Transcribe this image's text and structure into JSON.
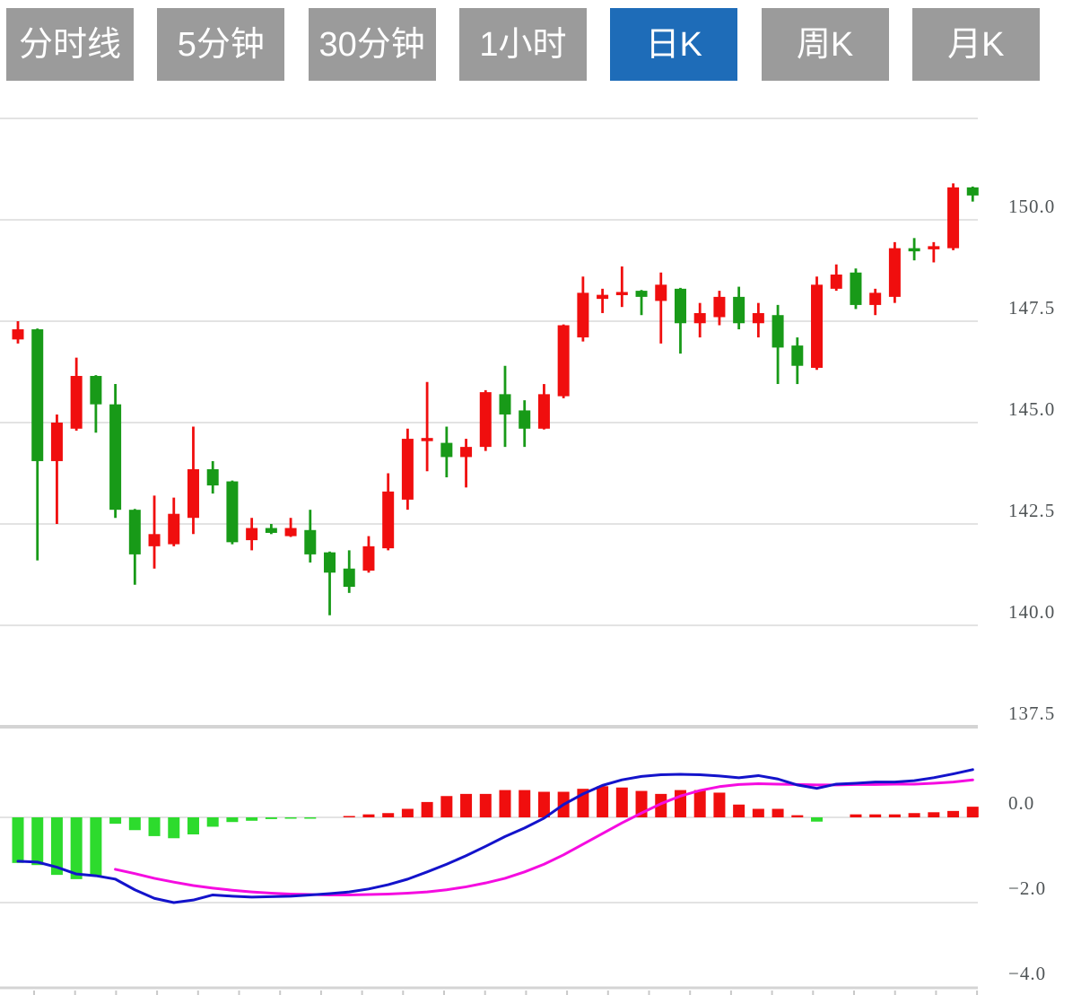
{
  "tabs": {
    "items": [
      {
        "name": "tab-minute-line",
        "label": "分时线",
        "active": false
      },
      {
        "name": "tab-5min",
        "label": "5分钟",
        "active": false
      },
      {
        "name": "tab-30min",
        "label": "30分钟",
        "active": false
      },
      {
        "name": "tab-1hour",
        "label": "1小时",
        "active": false
      },
      {
        "name": "tab-daily-k",
        "label": "日K",
        "active": true
      },
      {
        "name": "tab-weekly-k",
        "label": "周K",
        "active": false
      },
      {
        "name": "tab-monthly-k",
        "label": "月K",
        "active": false
      }
    ]
  },
  "colors": {
    "tab_bg": "#9b9b9b",
    "tab_active_bg": "#1e6cb8",
    "tab_text": "#ffffff",
    "candle_up": "#f00e0e",
    "candle_down": "#189a18",
    "hist_up": "#f00e0e",
    "hist_down": "#2ddb2d",
    "dif_line": "#1313cb",
    "dea_line": "#f50ce0",
    "grid": "#e3e3e3",
    "pane_border": "#d4d4d4",
    "axis_label": "#4f5456"
  },
  "chart_data": {
    "type": "candlestick",
    "title": "",
    "legend_position": "none",
    "grid": true,
    "price_pane": {
      "ylim": [
        137.5,
        152.5
      ],
      "unlabeled_top_grid_value": 152.5,
      "y_ticks": [
        {
          "label": "150.0",
          "value": 150.0
        },
        {
          "label": "147.5",
          "value": 147.5
        },
        {
          "label": "145.0",
          "value": 145.0
        },
        {
          "label": "142.5",
          "value": 142.5
        },
        {
          "label": "140.0",
          "value": 140.0
        },
        {
          "label": "137.5",
          "value": 137.5
        }
      ],
      "candles_ohlc": [
        [
          147.05,
          147.5,
          146.95,
          147.3
        ],
        [
          147.3,
          147.32,
          141.6,
          144.05
        ],
        [
          144.05,
          145.2,
          142.5,
          145.0
        ],
        [
          144.85,
          146.6,
          144.8,
          146.15
        ],
        [
          146.15,
          146.17,
          144.75,
          145.45
        ],
        [
          145.45,
          145.95,
          142.65,
          142.85
        ],
        [
          142.85,
          142.87,
          141.0,
          141.75
        ],
        [
          141.95,
          143.2,
          141.4,
          142.25
        ],
        [
          142.0,
          143.15,
          141.95,
          142.75
        ],
        [
          142.65,
          144.9,
          142.25,
          143.85
        ],
        [
          143.85,
          144.05,
          143.25,
          143.45
        ],
        [
          143.55,
          143.57,
          142.0,
          142.05
        ],
        [
          142.1,
          142.65,
          141.85,
          142.4
        ],
        [
          142.4,
          142.5,
          142.25,
          142.28
        ],
        [
          142.2,
          142.65,
          142.18,
          142.4
        ],
        [
          142.35,
          142.85,
          141.55,
          141.75
        ],
        [
          141.8,
          141.82,
          140.25,
          141.3
        ],
        [
          141.4,
          141.85,
          140.8,
          140.95
        ],
        [
          141.35,
          142.2,
          141.3,
          141.95
        ],
        [
          141.9,
          143.75,
          141.85,
          143.3
        ],
        [
          143.1,
          144.85,
          142.85,
          144.6
        ],
        [
          144.55,
          146.0,
          143.8,
          144.62
        ],
        [
          144.5,
          144.9,
          143.65,
          144.15
        ],
        [
          144.15,
          144.6,
          143.4,
          144.4
        ],
        [
          144.4,
          145.8,
          144.3,
          145.75
        ],
        [
          145.7,
          146.4,
          144.4,
          145.2
        ],
        [
          145.3,
          145.55,
          144.4,
          144.85
        ],
        [
          144.85,
          145.95,
          144.83,
          145.7
        ],
        [
          145.65,
          147.42,
          145.6,
          147.4
        ],
        [
          147.1,
          148.6,
          147.0,
          148.2
        ],
        [
          148.05,
          148.3,
          147.7,
          148.15
        ],
        [
          148.15,
          148.85,
          147.85,
          148.22
        ],
        [
          148.25,
          148.27,
          147.65,
          148.1
        ],
        [
          148.0,
          148.7,
          146.95,
          148.4
        ],
        [
          148.3,
          148.32,
          146.7,
          147.45
        ],
        [
          147.45,
          147.95,
          147.1,
          147.7
        ],
        [
          147.6,
          148.25,
          147.4,
          148.1
        ],
        [
          148.1,
          148.35,
          147.3,
          147.45
        ],
        [
          147.45,
          147.95,
          147.1,
          147.7
        ],
        [
          147.65,
          147.9,
          145.95,
          146.85
        ],
        [
          146.9,
          147.1,
          145.95,
          146.4
        ],
        [
          146.35,
          148.6,
          146.3,
          148.4
        ],
        [
          148.3,
          148.9,
          148.25,
          148.65
        ],
        [
          148.7,
          148.8,
          147.8,
          147.9
        ],
        [
          147.9,
          148.3,
          147.65,
          148.2
        ],
        [
          148.1,
          149.45,
          147.95,
          149.3
        ],
        [
          149.3,
          149.55,
          149.0,
          149.25
        ],
        [
          149.3,
          149.45,
          148.95,
          149.35
        ],
        [
          149.3,
          150.9,
          149.25,
          150.8
        ],
        [
          150.8,
          150.82,
          150.45,
          150.6
        ]
      ]
    },
    "macd_pane": {
      "ylim": [
        -4.0,
        1.3
      ],
      "y_ticks": [
        {
          "label": "0.0",
          "value": 0.0
        },
        {
          "label": "−2.0",
          "value": -2.0
        },
        {
          "label": "−4.0",
          "value": -4.0
        }
      ],
      "histogram": [
        -1.07,
        -1.12,
        -1.35,
        -1.45,
        -1.38,
        -0.15,
        -0.3,
        -0.44,
        -0.49,
        -0.4,
        -0.22,
        -0.11,
        -0.08,
        -0.04,
        -0.03,
        -0.02,
        0.0,
        0.02,
        0.07,
        0.1,
        0.2,
        0.36,
        0.5,
        0.55,
        0.55,
        0.64,
        0.64,
        0.6,
        0.6,
        0.67,
        0.73,
        0.7,
        0.62,
        0.55,
        0.64,
        0.64,
        0.58,
        0.3,
        0.2,
        0.2,
        0.05,
        -0.1,
        0.0,
        0.07,
        0.07,
        0.07,
        0.1,
        0.12,
        0.15,
        0.25
      ],
      "dif": [
        -1.03,
        -1.05,
        -1.17,
        -1.33,
        -1.37,
        -1.45,
        -1.7,
        -1.9,
        -2.0,
        -1.94,
        -1.82,
        -1.85,
        -1.87,
        -1.86,
        -1.85,
        -1.82,
        -1.79,
        -1.75,
        -1.68,
        -1.58,
        -1.45,
        -1.28,
        -1.1,
        -0.9,
        -0.68,
        -0.45,
        -0.25,
        -0.02,
        0.3,
        0.55,
        0.75,
        0.88,
        0.96,
        1.0,
        1.01,
        1.0,
        0.97,
        0.93,
        0.98,
        0.9,
        0.76,
        0.68,
        0.78,
        0.8,
        0.83,
        0.83,
        0.86,
        0.93,
        1.02,
        1.12
      ],
      "dea": [
        null,
        null,
        null,
        null,
        null,
        -1.22,
        -1.32,
        -1.43,
        -1.52,
        -1.6,
        -1.66,
        -1.71,
        -1.75,
        -1.78,
        -1.8,
        -1.81,
        -1.82,
        -1.82,
        -1.81,
        -1.8,
        -1.78,
        -1.75,
        -1.7,
        -1.63,
        -1.54,
        -1.43,
        -1.28,
        -1.1,
        -0.88,
        -0.63,
        -0.38,
        -0.13,
        0.1,
        0.32,
        0.5,
        0.63,
        0.72,
        0.77,
        0.79,
        0.78,
        0.77,
        0.76,
        0.76,
        0.77,
        0.77,
        0.78,
        0.78,
        0.8,
        0.83,
        0.88
      ]
    }
  }
}
